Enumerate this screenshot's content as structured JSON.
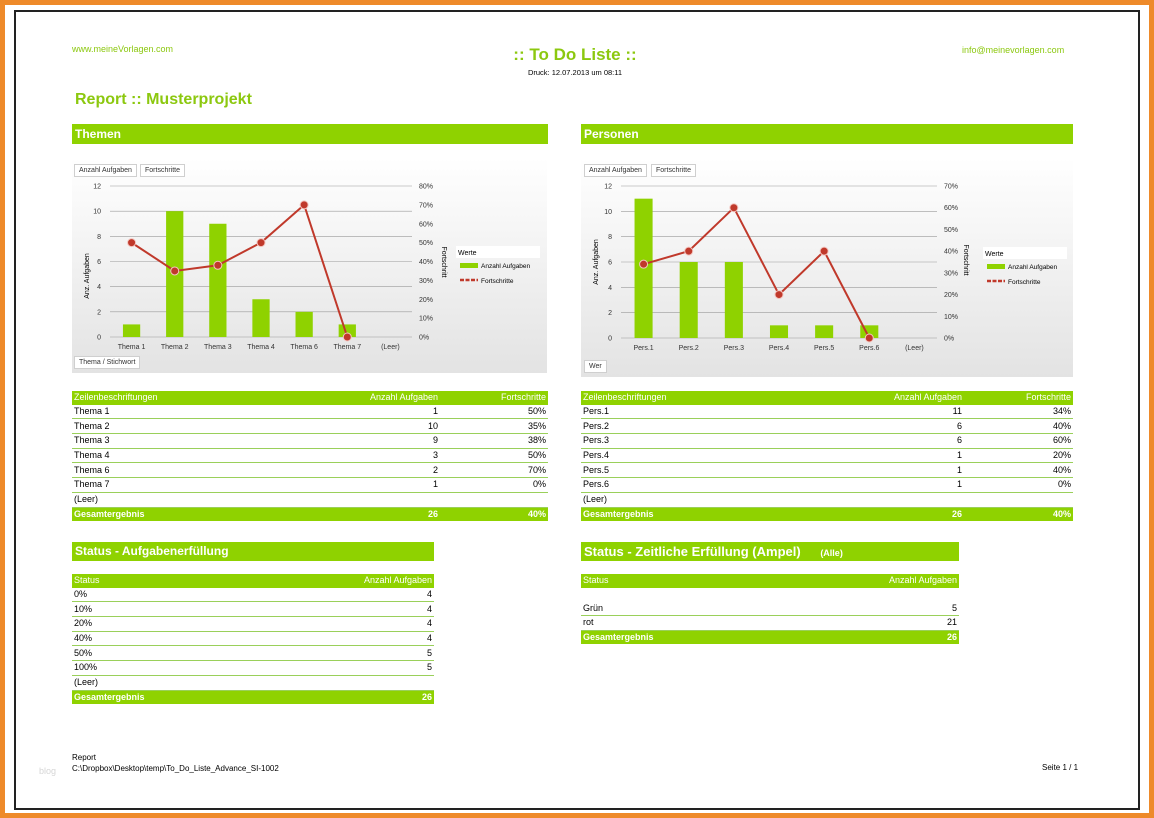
{
  "header": {
    "site": "www.meineVorlagen.com",
    "title": ":: To Do Liste ::",
    "druck": "Druck: 12.07.2013 um 08:11",
    "email": "info@meinevorlagen.com",
    "report_title": "Report :: Musterprojekt"
  },
  "themen": {
    "section_title": "Themen",
    "buttons": [
      "Anzahl Aufgaben",
      "Fortschritte"
    ],
    "row_field_button": "Thema / Stichwort",
    "legend_title": "Werte",
    "legend_items": [
      "Anzahl Aufgaben",
      "Fortschritte"
    ],
    "y_label_left": "Anz. Aufgaben",
    "y_label_right": "Fortschritt",
    "table": {
      "headers": [
        "Zeilenbeschriftungen",
        "Anzahl Aufgaben",
        "Fortschritte"
      ],
      "rows": [
        [
          "Thema 1",
          "1",
          "50%"
        ],
        [
          "Thema 2",
          "10",
          "35%"
        ],
        [
          "Thema 3",
          "9",
          "38%"
        ],
        [
          "Thema 4",
          "3",
          "50%"
        ],
        [
          "Thema 6",
          "2",
          "70%"
        ],
        [
          "Thema 7",
          "1",
          "0%"
        ],
        [
          "(Leer)",
          "",
          ""
        ]
      ],
      "total": [
        "Gesamtergebnis",
        "26",
        "40%"
      ]
    }
  },
  "personen": {
    "section_title": "Personen",
    "buttons": [
      "Anzahl Aufgaben",
      "Fortschritte"
    ],
    "row_field_button": "Wer",
    "legend_title": "Werte",
    "legend_items": [
      "Anzahl Aufgaben",
      "Fortschritte"
    ],
    "y_label_left": "Anz. Aufgaben",
    "y_label_right": "Fortschritt",
    "table": {
      "headers": [
        "Zeilenbeschriftungen",
        "Anzahl Aufgaben",
        "Fortschritte"
      ],
      "rows": [
        [
          "Pers.1",
          "11",
          "34%"
        ],
        [
          "Pers.2",
          "6",
          "40%"
        ],
        [
          "Pers.3",
          "6",
          "60%"
        ],
        [
          "Pers.4",
          "1",
          "20%"
        ],
        [
          "Pers.5",
          "1",
          "40%"
        ],
        [
          "Pers.6",
          "1",
          "0%"
        ],
        [
          "(Leer)",
          "",
          ""
        ]
      ],
      "total": [
        "Gesamtergebnis",
        "26",
        "40%"
      ]
    }
  },
  "status": {
    "section_title": "Status - Aufgabenerfüllung",
    "headers": [
      "Status",
      "Anzahl Aufgaben"
    ],
    "rows": [
      [
        "0%",
        "4"
      ],
      [
        "10%",
        "4"
      ],
      [
        "20%",
        "4"
      ],
      [
        "40%",
        "4"
      ],
      [
        "50%",
        "5"
      ],
      [
        "100%",
        "5"
      ],
      [
        "(Leer)",
        ""
      ]
    ],
    "total": [
      "Gesamtergebnis",
      "26"
    ]
  },
  "ampel": {
    "section_title": "Status - Zeitliche Erfüllung (Ampel)",
    "filter": "(Alle)",
    "headers": [
      "Status",
      "Anzahl Aufgaben"
    ],
    "rows": [
      [
        "",
        ""
      ],
      [
        "Grün",
        "5"
      ],
      [
        "rot",
        "21"
      ]
    ],
    "total": [
      "Gesamtergebnis",
      "26"
    ]
  },
  "footer": {
    "line1": "Report",
    "line2": "C:\\Dropbox\\Desktop\\temp\\To_Do_Liste_Advance_SI-1002",
    "page": "Seite 1 / 1",
    "watermark": "blog"
  },
  "colors": {
    "accent": "#8fd200",
    "line": "#c0392b",
    "frame": "#ee8a2a"
  },
  "chart_data": [
    {
      "type": "bar",
      "title": "Themen",
      "categories": [
        "Thema 1",
        "Thema 2",
        "Thema 3",
        "Thema 4",
        "Thema 6",
        "Thema 7",
        "(Leer)"
      ],
      "series": [
        {
          "name": "Anzahl Aufgaben",
          "type": "bar",
          "axis": "left",
          "values": [
            1,
            10,
            9,
            3,
            2,
            1,
            null
          ]
        },
        {
          "name": "Fortschritte",
          "type": "line",
          "axis": "right",
          "values": [
            50,
            35,
            38,
            50,
            70,
            0,
            null
          ]
        }
      ],
      "ylabel": "Anz. Aufgaben",
      "y2label": "Fortschritt",
      "ylim": [
        0,
        12
      ],
      "yticks": [
        0,
        2,
        4,
        6,
        8,
        10,
        12
      ],
      "y2lim": [
        0,
        80
      ],
      "y2ticks": [
        "0%",
        "10%",
        "20%",
        "30%",
        "40%",
        "50%",
        "60%",
        "70%",
        "80%"
      ],
      "legend": "right"
    },
    {
      "type": "bar",
      "title": "Personen",
      "categories": [
        "Pers.1",
        "Pers.2",
        "Pers.3",
        "Pers.4",
        "Pers.5",
        "Pers.6",
        "(Leer)"
      ],
      "series": [
        {
          "name": "Anzahl Aufgaben",
          "type": "bar",
          "axis": "left",
          "values": [
            11,
            6,
            6,
            1,
            1,
            1,
            null
          ]
        },
        {
          "name": "Fortschritte",
          "type": "line",
          "axis": "right",
          "values": [
            34,
            40,
            60,
            20,
            40,
            0,
            null
          ]
        }
      ],
      "ylabel": "Anz. Aufgaben",
      "y2label": "Fortschritt",
      "ylim": [
        0,
        12
      ],
      "yticks": [
        0,
        2,
        4,
        6,
        8,
        10,
        12
      ],
      "y2lim": [
        0,
        70
      ],
      "y2ticks": [
        "0%",
        "10%",
        "20%",
        "30%",
        "40%",
        "50%",
        "60%",
        "70%"
      ],
      "legend": "right"
    }
  ]
}
